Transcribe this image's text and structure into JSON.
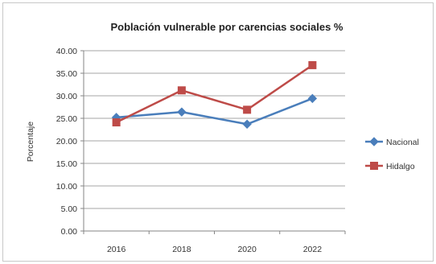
{
  "chart_data": {
    "type": "line",
    "title": "Población vulnerable por carencias sociales %",
    "xlabel": "",
    "ylabel": "Porcentaje",
    "categories": [
      "2016",
      "2018",
      "2020",
      "2022"
    ],
    "ylim": [
      0,
      40
    ],
    "yticks": [
      "0.00",
      "5.00",
      "10.00",
      "15.00",
      "20.00",
      "25.00",
      "30.00",
      "35.00",
      "40.00"
    ],
    "grid": true,
    "legend_position": "right",
    "series": [
      {
        "name": "Nacional",
        "values": [
          25.2,
          26.4,
          23.7,
          29.4
        ],
        "color": "#4a7ebb",
        "marker": "diamond"
      },
      {
        "name": "Hidalgo",
        "values": [
          24.1,
          31.2,
          26.9,
          36.8
        ],
        "color": "#be4b48",
        "marker": "square"
      }
    ]
  }
}
